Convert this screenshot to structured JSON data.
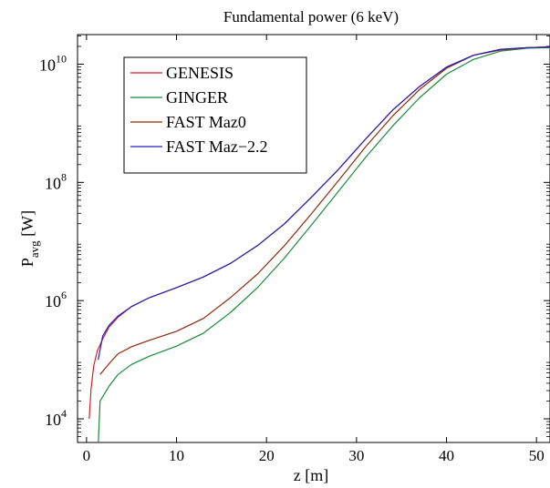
{
  "chart_data": {
    "type": "line",
    "title": "Fundamental power (6 keV)",
    "xlabel": "z [m]",
    "ylabel": {
      "main": "P",
      "sub": "avg",
      "unit": " [W]"
    },
    "xlim": [
      -1,
      51.5
    ],
    "ylim_log10": [
      3.6,
      10.5
    ],
    "y_scale": "log",
    "grid": false,
    "legend_position": "top-left",
    "x_ticks": [
      0,
      10,
      20,
      30,
      40,
      50
    ],
    "x_tick_labels": [
      "0",
      "10",
      "20",
      "30",
      "40",
      "50"
    ],
    "y_ticks": [
      {
        "exp": 4,
        "base": "10",
        "power": "4"
      },
      {
        "exp": 6,
        "base": "10",
        "power": "6"
      },
      {
        "exp": 8,
        "base": "10",
        "power": "8"
      },
      {
        "exp": 10,
        "base": "10",
        "power": "10"
      }
    ],
    "series": [
      {
        "name": "GENESIS",
        "color": "#d42020",
        "points": [
          [
            0.3,
            4.0
          ],
          [
            0.5,
            4.5
          ],
          [
            0.8,
            4.9
          ],
          [
            1.2,
            5.15
          ],
          [
            1.8,
            5.35
          ],
          [
            2.5,
            5.55
          ],
          [
            3.5,
            5.72
          ],
          [
            5,
            5.9
          ],
          [
            7,
            6.05
          ],
          [
            10,
            6.22
          ],
          [
            13,
            6.4
          ],
          [
            16,
            6.63
          ],
          [
            19,
            6.93
          ],
          [
            22,
            7.3
          ],
          [
            25,
            7.75
          ],
          [
            28,
            8.22
          ],
          [
            31,
            8.73
          ],
          [
            34,
            9.22
          ],
          [
            37,
            9.62
          ],
          [
            40,
            9.95
          ],
          [
            43,
            10.15
          ],
          [
            46,
            10.25
          ],
          [
            49,
            10.28
          ],
          [
            51.5,
            10.29
          ]
        ]
      },
      {
        "name": "GINGER",
        "color": "#1a8a3a",
        "points": [
          [
            1.3,
            3.55
          ],
          [
            1.5,
            4.3
          ],
          [
            2.5,
            4.55
          ],
          [
            3.5,
            4.75
          ],
          [
            5,
            4.92
          ],
          [
            7,
            5.06
          ],
          [
            10,
            5.23
          ],
          [
            13,
            5.45
          ],
          [
            16,
            5.8
          ],
          [
            19,
            6.22
          ],
          [
            22,
            6.72
          ],
          [
            25,
            7.28
          ],
          [
            28,
            7.85
          ],
          [
            31,
            8.42
          ],
          [
            34,
            8.95
          ],
          [
            37,
            9.43
          ],
          [
            40,
            9.83
          ],
          [
            43,
            10.08
          ],
          [
            46,
            10.22
          ],
          [
            49,
            10.27
          ],
          [
            51.5,
            10.28
          ]
        ]
      },
      {
        "name": "FAST Maz0",
        "color": "#8b2a0a",
        "points": [
          [
            1.5,
            4.75
          ],
          [
            2.5,
            4.93
          ],
          [
            3.5,
            5.1
          ],
          [
            5,
            5.22
          ],
          [
            7,
            5.33
          ],
          [
            10,
            5.48
          ],
          [
            13,
            5.7
          ],
          [
            16,
            6.05
          ],
          [
            19,
            6.45
          ],
          [
            22,
            6.93
          ],
          [
            25,
            7.47
          ],
          [
            28,
            8.03
          ],
          [
            31,
            8.6
          ],
          [
            34,
            9.12
          ],
          [
            37,
            9.57
          ],
          [
            40,
            9.93
          ],
          [
            43,
            10.15
          ],
          [
            46,
            10.24
          ],
          [
            49,
            10.28
          ],
          [
            51.5,
            10.29
          ]
        ]
      },
      {
        "name": "FAST Maz−2.2",
        "color": "#2020b8",
        "points": [
          [
            1.3,
            5.0
          ],
          [
            1.8,
            5.4
          ],
          [
            2.5,
            5.58
          ],
          [
            3.5,
            5.74
          ],
          [
            5,
            5.9
          ],
          [
            7,
            6.05
          ],
          [
            10,
            6.22
          ],
          [
            13,
            6.4
          ],
          [
            16,
            6.63
          ],
          [
            19,
            6.93
          ],
          [
            22,
            7.3
          ],
          [
            25,
            7.75
          ],
          [
            28,
            8.22
          ],
          [
            31,
            8.73
          ],
          [
            34,
            9.22
          ],
          [
            37,
            9.62
          ],
          [
            40,
            9.95
          ],
          [
            43,
            10.15
          ],
          [
            46,
            10.25
          ],
          [
            49,
            10.28
          ],
          [
            51.5,
            10.29
          ]
        ]
      }
    ]
  }
}
